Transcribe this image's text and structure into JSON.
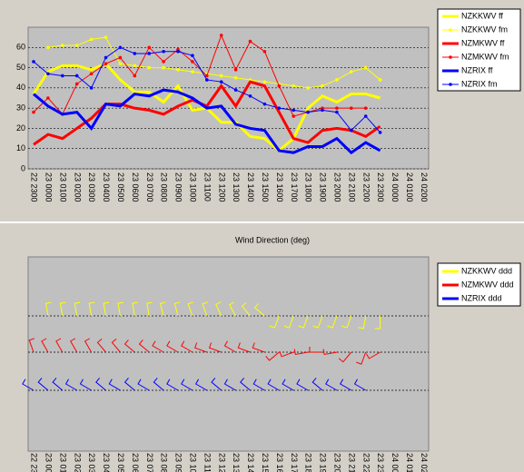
{
  "chart_data": [
    {
      "type": "line",
      "categories": [
        "22 2300",
        "23 0000",
        "23 0100",
        "23 0200",
        "23 0300",
        "23 0400",
        "23 0500",
        "23 0600",
        "23 0700",
        "23 0800",
        "23 0900",
        "23 1000",
        "23 1100",
        "23 1200",
        "23 1300",
        "23 1400",
        "23 1500",
        "23 1600",
        "23 1700",
        "23 1800",
        "23 1900",
        "23 2000",
        "23 2100",
        "23 2200",
        "23 2300",
        "24 0000",
        "24 0100",
        "24 0200"
      ],
      "ylim": [
        0,
        70
      ],
      "yticks": [
        0,
        10,
        20,
        30,
        40,
        50,
        60
      ],
      "grid": true,
      "series": [
        {
          "name": "NZKKWV ff",
          "color": "#ffff00",
          "width": 3,
          "markers": false,
          "values": [
            37,
            48,
            51,
            51,
            49,
            52,
            44,
            38,
            38,
            33,
            41,
            29,
            30,
            23,
            23,
            16,
            15,
            9,
            15,
            30,
            36,
            33,
            37,
            37,
            35,
            null,
            null,
            null
          ]
        },
        {
          "name": "NZKKWV fm",
          "color": "#ffff00",
          "width": 1,
          "markers": true,
          "values": [
            null,
            60,
            61,
            61,
            64,
            65,
            52,
            51,
            50,
            50,
            49,
            48,
            47,
            46,
            45,
            44,
            43,
            42,
            41,
            40,
            41,
            44,
            48,
            50,
            44,
            null,
            null,
            null
          ]
        },
        {
          "name": "NZMKWV ff",
          "color": "#ff0000",
          "width": 3,
          "markers": false,
          "values": [
            12,
            17,
            15,
            20,
            25,
            32,
            32,
            30,
            29,
            27,
            31,
            34,
            31,
            41,
            31,
            43,
            41,
            28,
            15,
            13,
            19,
            20,
            19,
            16,
            21,
            null,
            null,
            null
          ]
        },
        {
          "name": "NZMKWV fm",
          "color": "#ff0000",
          "width": 1,
          "markers": true,
          "values": [
            28,
            35,
            27,
            42,
            47,
            52,
            55,
            46,
            60,
            53,
            59,
            53,
            46,
            66,
            49,
            63,
            58,
            41,
            26,
            28,
            30,
            30,
            30,
            30,
            null,
            null,
            null,
            null
          ]
        },
        {
          "name": "NZRIX ff",
          "color": "#0000ff",
          "width": 3,
          "markers": false,
          "values": [
            37,
            31,
            27,
            28,
            20,
            32,
            31,
            37,
            36,
            39,
            38,
            35,
            30,
            31,
            22,
            20,
            19,
            9,
            8,
            11,
            11,
            15,
            8,
            13,
            9,
            null,
            null,
            null
          ]
        },
        {
          "name": "NZRIX fm",
          "color": "#0000ff",
          "width": 1,
          "markers": true,
          "values": [
            53,
            47,
            46,
            46,
            40,
            55,
            60,
            57,
            57,
            58,
            58,
            56,
            44,
            43,
            39,
            36,
            32,
            30,
            29,
            28,
            29,
            28,
            19,
            26,
            18,
            null,
            null,
            null
          ]
        }
      ]
    },
    {
      "type": "barb",
      "title": "Wind Direction  (deg)",
      "categories": [
        "22 2300",
        "23 0000",
        "23 0100",
        "23 0200",
        "23 0300",
        "23 0400",
        "23 0500",
        "23 0600",
        "23 0700",
        "23 0800",
        "23 0900",
        "23 1000",
        "23 1100",
        "23 1200",
        "23 1300",
        "23 1400",
        "23 1500",
        "23 1600",
        "23 1700",
        "23 1800",
        "23 1900",
        "23 2000",
        "23 2100",
        "23 2200",
        "23 2300",
        "24 0000",
        "24 0100",
        "24 0200"
      ],
      "series": [
        {
          "name": "NZKKWV ddd",
          "color": "#ffff00",
          "values": [
            null,
            350,
            350,
            350,
            350,
            350,
            350,
            350,
            350,
            345,
            345,
            340,
            340,
            335,
            330,
            320,
            310,
            200,
            200,
            200,
            200,
            200,
            200,
            190,
            180,
            null,
            null,
            null
          ]
        },
        {
          "name": "NZMKWV ddd",
          "color": "#ff0000",
          "values": [
            340,
            330,
            330,
            330,
            330,
            320,
            320,
            310,
            310,
            300,
            300,
            300,
            290,
            290,
            300,
            290,
            290,
            230,
            250,
            260,
            270,
            260,
            220,
            200,
            240,
            null,
            null,
            null
          ]
        },
        {
          "name": "NZRIX ddd",
          "color": "#0000ff",
          "values": [
            300,
            310,
            310,
            300,
            300,
            310,
            300,
            310,
            300,
            310,
            300,
            300,
            300,
            310,
            300,
            310,
            300,
            300,
            300,
            300,
            310,
            300,
            300,
            300,
            null,
            null,
            null,
            null
          ]
        }
      ]
    }
  ]
}
